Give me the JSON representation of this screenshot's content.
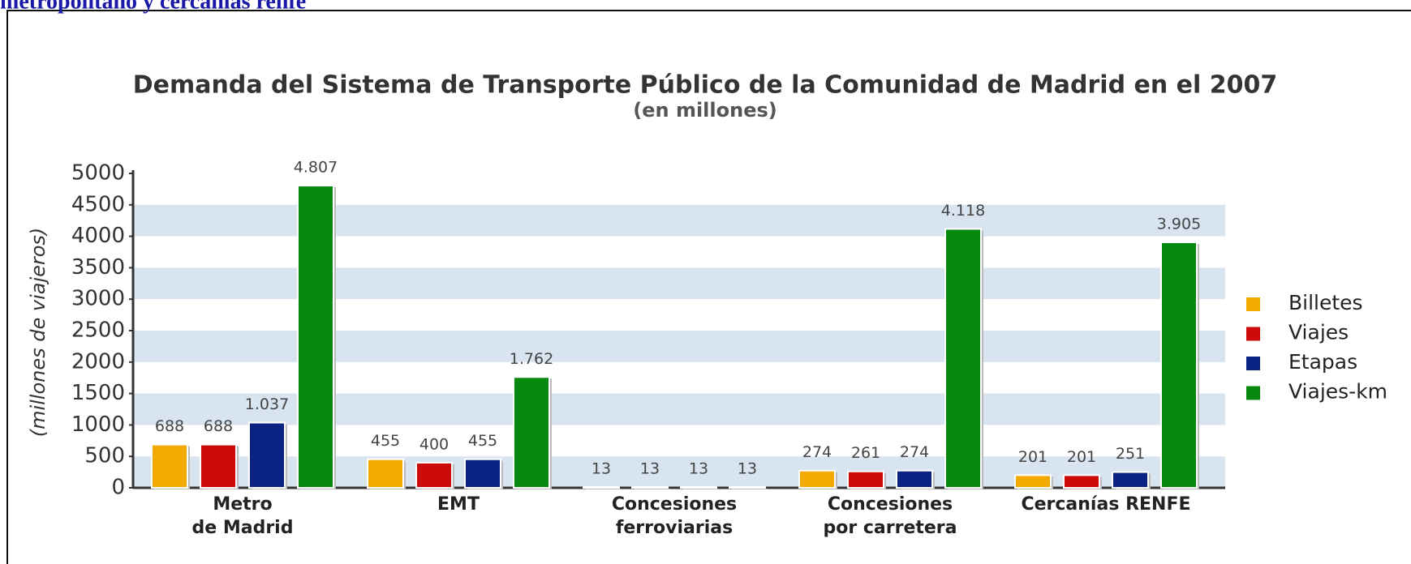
{
  "header": {
    "caption": "metropolitano y cercanías renfe"
  },
  "chart_data": {
    "type": "bar",
    "title": "Demanda del Sistema de Transporte Público de la Comunidad de Madrid en el 2007",
    "subtitle": "(en millones)",
    "y_label": "(millones de viajeros)",
    "categories": [
      "Metro\nde Madrid",
      "EMT",
      "Concesiones\nferroviarias",
      "Concesiones\npor carretera",
      "Cercanías RENFE"
    ],
    "series": [
      {
        "name": "Billetes",
        "color": "#f2a900",
        "values": [
          688,
          455,
          13,
          274,
          201
        ],
        "value_labels": [
          "688",
          "455",
          "13",
          "274",
          "201"
        ]
      },
      {
        "name": "Viajes",
        "color": "#cc0a0a",
        "values": [
          688,
          400,
          13,
          261,
          201
        ],
        "value_labels": [
          "688",
          "400",
          "13",
          "261",
          "201"
        ]
      },
      {
        "name": "Etapas",
        "color": "#0a2382",
        "values": [
          1037,
          455,
          13,
          274,
          251
        ],
        "value_labels": [
          "1.037",
          "455",
          "13",
          "274",
          "251"
        ]
      },
      {
        "name": "Viajes-km",
        "color": "#07890f",
        "values": [
          4807,
          1762,
          13,
          4118,
          3905
        ],
        "value_labels": [
          "4.807",
          "1.762",
          "13",
          "4.118",
          "3.905"
        ]
      }
    ],
    "ylim": [
      0,
      5000
    ],
    "yticks": [
      0,
      500,
      1000,
      1500,
      2000,
      2500,
      3000,
      3500,
      4000,
      4500,
      5000
    ],
    "grid": "bands",
    "legend": "right"
  }
}
